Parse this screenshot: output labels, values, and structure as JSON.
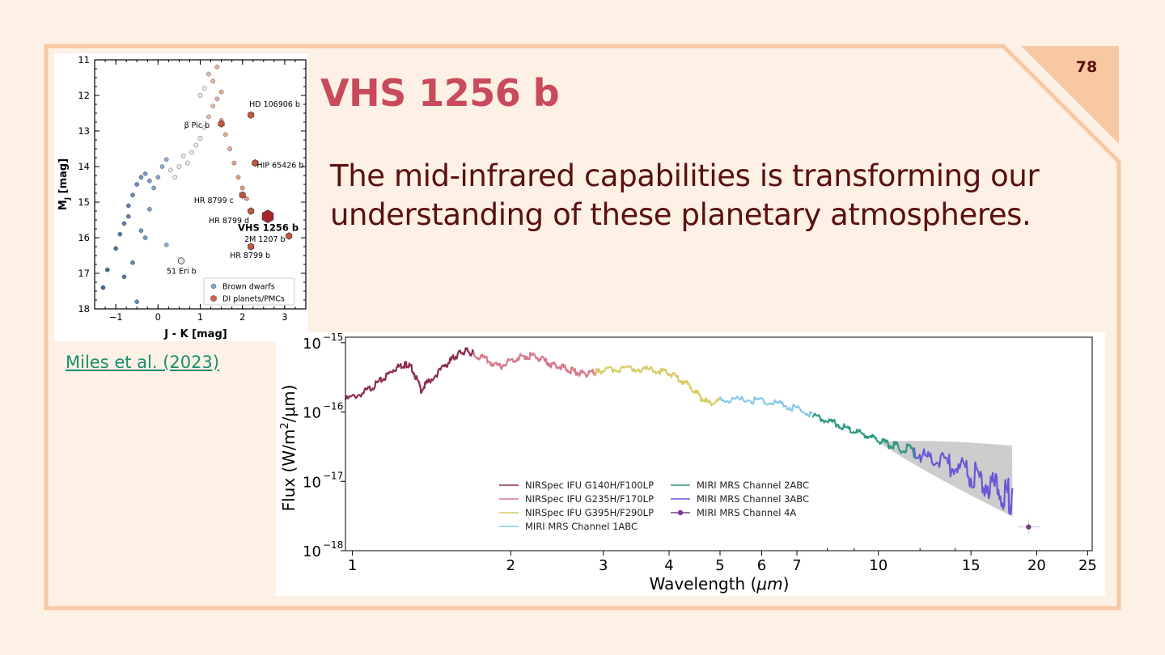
{
  "slide": {
    "number": "78",
    "title": "VHS 1256 b",
    "body": "The mid-infrared capabilities is transforming our understanding of these planetary atmospheres.",
    "citation": "Miles et al. (2023)"
  },
  "colors": {
    "background": "#fdf0e4",
    "frame": "#f8c8a2",
    "title": "#c94a5a",
    "body_text": "#5a0f10",
    "link": "#17906e"
  },
  "chart_data": [
    {
      "type": "scatter",
      "name": "color-magnitude-diagram",
      "title": "",
      "xlabel": "J - K [mag]",
      "ylabel": "M_J [mag]",
      "ylabel_main": "M",
      "ylabel_sub": "J",
      "ylabel_unit": " [mag]",
      "xlim": [
        -1.5,
        3.5
      ],
      "ylim": [
        18,
        11
      ],
      "xticks": [
        -1,
        0,
        1,
        2,
        3
      ],
      "yticks": [
        11,
        12,
        13,
        14,
        15,
        16,
        17,
        18
      ],
      "legend": [
        {
          "label": "Brown dwarfs",
          "color": "#7fa8cc",
          "marker": "circle"
        },
        {
          "label": "DI planets/PMCs",
          "color": "#d0604a",
          "marker": "hexagon"
        }
      ],
      "brown_dwarfs_approx": [
        [
          -1.3,
          17.4
        ],
        [
          -1.2,
          16.9
        ],
        [
          -1.0,
          16.3
        ],
        [
          -0.9,
          15.9
        ],
        [
          -0.8,
          15.6
        ],
        [
          -0.7,
          15.1
        ],
        [
          -0.6,
          14.8
        ],
        [
          -0.5,
          14.5
        ],
        [
          -0.4,
          14.3
        ],
        [
          -0.3,
          14.2
        ],
        [
          -0.2,
          14.4
        ],
        [
          -0.1,
          14.6
        ],
        [
          0.0,
          14.3
        ],
        [
          0.1,
          14.0
        ],
        [
          0.2,
          13.8
        ],
        [
          0.3,
          14.1
        ],
        [
          0.4,
          14.3
        ],
        [
          0.5,
          14.0
        ],
        [
          0.6,
          13.7
        ],
        [
          0.7,
          13.9
        ],
        [
          0.8,
          13.6
        ],
        [
          0.9,
          13.4
        ],
        [
          1.0,
          13.2
        ],
        [
          1.1,
          12.9
        ],
        [
          1.2,
          12.6
        ],
        [
          1.3,
          12.3
        ],
        [
          1.4,
          12.1
        ],
        [
          1.5,
          12.7
        ],
        [
          1.6,
          13.1
        ],
        [
          1.7,
          13.5
        ],
        [
          1.8,
          13.9
        ],
        [
          1.9,
          14.3
        ],
        [
          2.0,
          14.6
        ],
        [
          2.1,
          14.9
        ],
        [
          1.2,
          11.4
        ],
        [
          1.3,
          11.6
        ],
        [
          1.1,
          11.8
        ],
        [
          1.0,
          12.0
        ],
        [
          1.4,
          11.2
        ],
        [
          1.5,
          11.9
        ],
        [
          -0.6,
          16.7
        ],
        [
          -0.8,
          17.1
        ],
        [
          -0.4,
          15.8
        ],
        [
          -0.2,
          15.2
        ],
        [
          0.2,
          16.2
        ],
        [
          -0.7,
          15.4
        ],
        [
          -0.5,
          17.8
        ],
        [
          -0.3,
          16.0
        ]
      ],
      "di_planets": [
        {
          "label": "HD 106906 b",
          "x": 2.2,
          "y": 12.55
        },
        {
          "label": "β Pic b",
          "x": 1.5,
          "y": 12.8
        },
        {
          "label": "HIP 65426 b",
          "x": 2.3,
          "y": 13.9
        },
        {
          "label": "HR 8799 c",
          "x": 2.0,
          "y": 14.8
        },
        {
          "label": "HR 8799 d",
          "x": 2.2,
          "y": 15.25
        },
        {
          "label": "VHS 1256 b",
          "x": 2.6,
          "y": 15.4,
          "highlight": true
        },
        {
          "label": "2M 1207 b",
          "x": 3.1,
          "y": 15.95
        },
        {
          "label": "HR 8799 b",
          "x": 2.2,
          "y": 16.25
        },
        {
          "label": "51 Eri b",
          "x": 0.55,
          "y": 16.65
        }
      ]
    },
    {
      "type": "line",
      "name": "spectrum",
      "xlabel_main": "Wavelength (",
      "xlabel_sym": "μm",
      "xlabel_end": ")",
      "ylabel_main": "Flux (W/m",
      "ylabel_sup": "2",
      "ylabel_end": "/μm)",
      "xscale": "log",
      "yscale": "log",
      "xlim": [
        0.97,
        25.5
      ],
      "ylim": [
        1e-18,
        1.2e-15
      ],
      "xticks": [
        1,
        2,
        3,
        4,
        5,
        6,
        7,
        10,
        15,
        20,
        25
      ],
      "yticks": [
        {
          "base": "10",
          "exp": "−15",
          "value": 1e-15
        },
        {
          "base": "10",
          "exp": "−16",
          "value": 1e-16
        },
        {
          "base": "10",
          "exp": "−17",
          "value": 1e-17
        },
        {
          "base": "10",
          "exp": "−18",
          "value": 1e-18
        }
      ],
      "series": [
        {
          "name": "NIRSpec IFU G140H/F100LP",
          "color": "#8e2c52",
          "x": [
            0.97,
            1.05,
            1.1,
            1.15,
            1.2,
            1.25,
            1.27,
            1.3,
            1.35,
            1.4,
            1.5,
            1.55,
            1.6,
            1.65,
            1.7
          ],
          "y": [
            1.5e-16,
            1.9e-16,
            2.4e-16,
            3.1e-16,
            4.2e-16,
            4.8e-16,
            4.9e-16,
            4.2e-16,
            2.1e-16,
            2.8e-16,
            4.6e-16,
            5.9e-16,
            7.1e-16,
            7.6e-16,
            6.9e-16
          ]
        },
        {
          "name": "NIRSpec IFU G235H/F170LP",
          "color": "#d97a8a",
          "x": [
            1.7,
            1.8,
            1.9,
            2.0,
            2.1,
            2.2,
            2.3,
            2.4,
            2.5,
            2.6,
            2.7,
            2.8,
            2.9
          ],
          "y": [
            6.9e-16,
            5.6e-16,
            4.4e-16,
            5.6e-16,
            6.3e-16,
            6.5e-16,
            5.6e-16,
            4.8e-16,
            4.5e-16,
            4e-16,
            3.7e-16,
            3.6e-16,
            3.7e-16
          ]
        },
        {
          "name": "NIRSpec IFU G395H/F290LP",
          "color": "#d8cc66",
          "x": [
            2.9,
            3.0,
            3.2,
            3.5,
            3.8,
            4.0,
            4.2,
            4.4,
            4.6,
            4.8,
            5.0
          ],
          "y": [
            3.7e-16,
            4e-16,
            4.2e-16,
            4.2e-16,
            4e-16,
            3.6e-16,
            3e-16,
            2.3e-16,
            1.6e-16,
            1.3e-16,
            1.5e-16
          ]
        },
        {
          "name": "MIRI MRS Channel 1ABC",
          "color": "#86c8ea",
          "x": [
            5.0,
            5.5,
            6.0,
            6.5,
            7.0,
            7.5
          ],
          "y": [
            1.5e-16,
            1.5e-16,
            1.45e-16,
            1.3e-16,
            1.1e-16,
            9e-17
          ]
        },
        {
          "name": "MIRI MRS Channel 2ABC",
          "color": "#2f9a82",
          "x": [
            7.5,
            8.0,
            8.5,
            9.0,
            9.5,
            10.0,
            10.5,
            11.0,
            11.7
          ],
          "y": [
            9e-17,
            7.6e-17,
            6.3e-17,
            5.3e-17,
            4.6e-17,
            3.9e-17,
            3.4e-17,
            3e-17,
            2.6e-17
          ]
        },
        {
          "name": "MIRI MRS Channel 3ABC",
          "color": "#6a58d6",
          "x": [
            11.7,
            12.5,
            13.5,
            14.5,
            15.5,
            16.5,
            17.5,
            18.0
          ],
          "y": [
            2.6e-17,
            2.2e-17,
            1.75e-17,
            1.4e-17,
            1.15e-17,
            8.8e-18,
            6.8e-18,
            6e-18
          ]
        },
        {
          "name": "MIRI MRS Channel 4A",
          "color": "#7b3b8e",
          "x": [
            19.3
          ],
          "y": [
            2.2e-18
          ],
          "marker": "point"
        }
      ]
    }
  ]
}
